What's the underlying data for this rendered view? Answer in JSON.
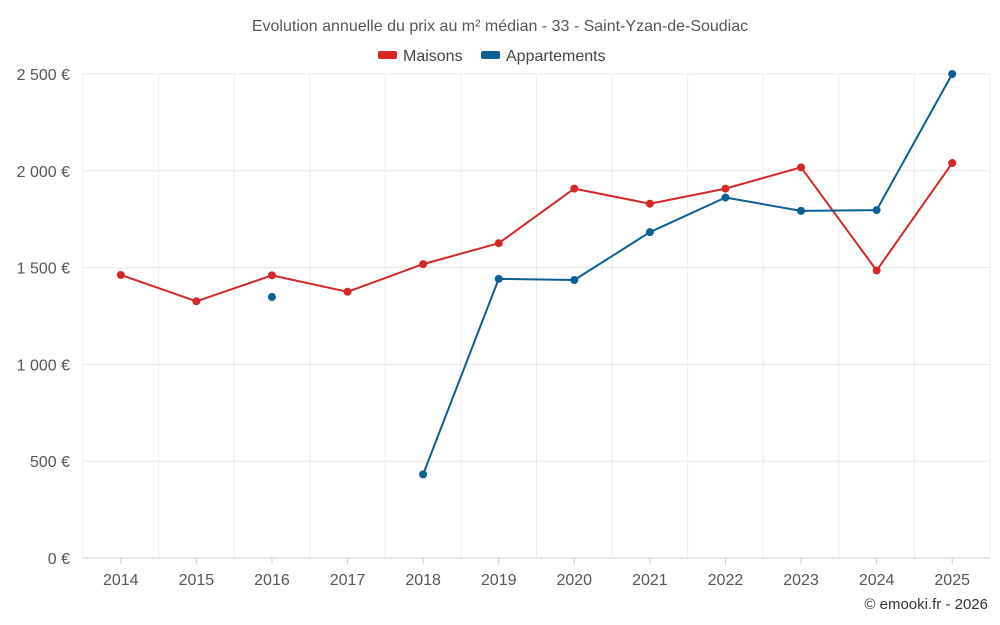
{
  "chart_data": {
    "type": "line",
    "title": "Evolution annuelle du prix au m² médian - 33 - Saint-Yzan-de-Soudiac",
    "categories": [
      "2014",
      "2015",
      "2016",
      "2017",
      "2018",
      "2019",
      "2020",
      "2021",
      "2022",
      "2023",
      "2024",
      "2025"
    ],
    "series": [
      {
        "name": "Maisons",
        "color": "#d62728",
        "values": [
          1462,
          1326,
          1460,
          1375,
          1518,
          1626,
          1908,
          1830,
          1908,
          2018,
          1485,
          2040
        ]
      },
      {
        "name": "Appartements",
        "color": "#0a5f94",
        "values": [
          null,
          null,
          1348,
          null,
          432,
          1442,
          1436,
          1683,
          1862,
          1793,
          1797,
          2500
        ]
      }
    ],
    "ylim": [
      0,
      2500
    ],
    "yticks": [
      0,
      500,
      1000,
      1500,
      2000,
      2500
    ],
    "ytick_labels": [
      "0 €",
      "500 €",
      "1 000 €",
      "1 500 €",
      "2 000 €",
      "2 500 €"
    ],
    "xlabel": "",
    "ylabel": "",
    "legend_position": "top-center",
    "grid": true
  },
  "credit": "© emooki.fr - 2026"
}
